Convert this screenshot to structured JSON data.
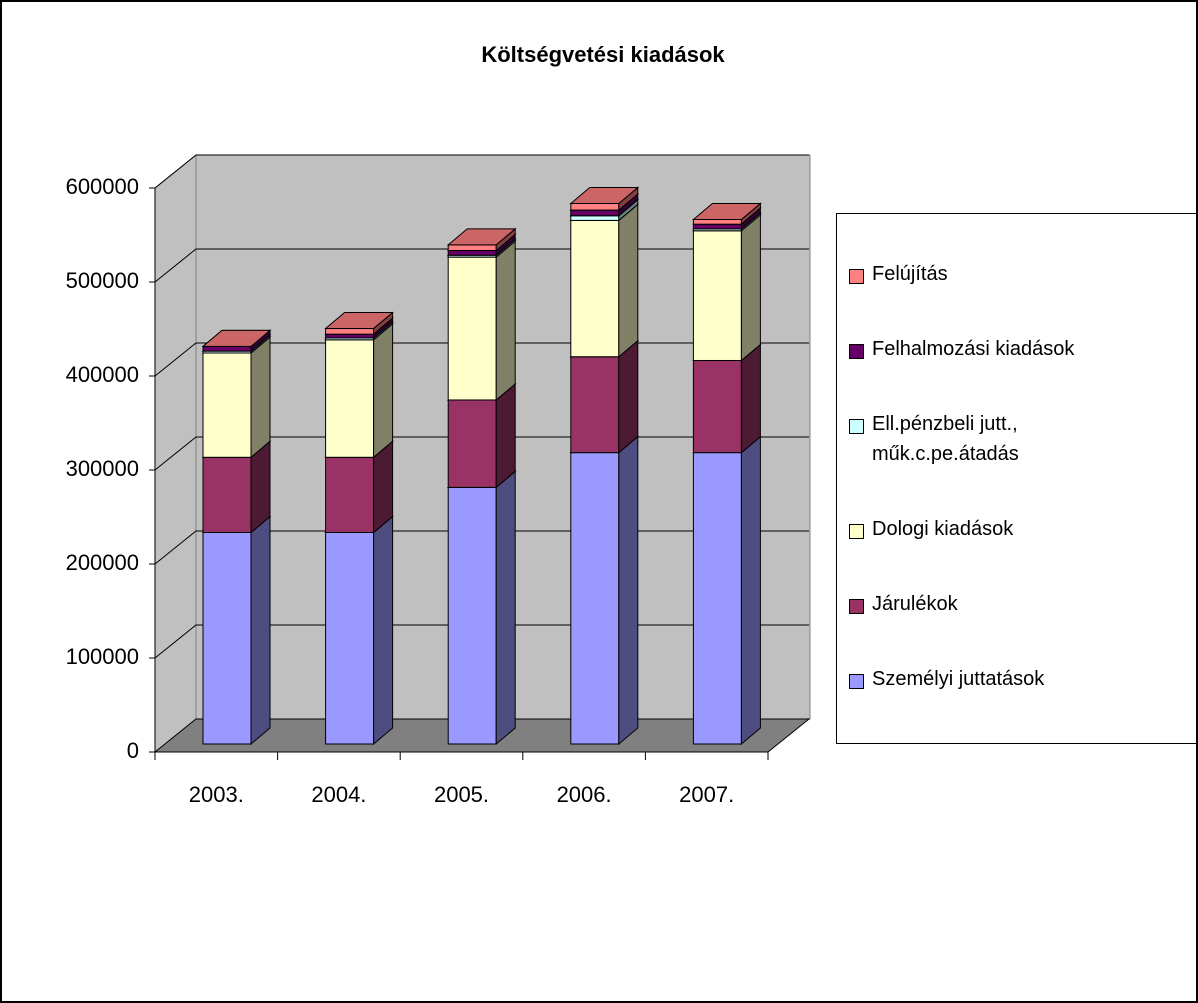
{
  "chart_data": {
    "type": "bar3d_stacked",
    "title": "Költségvetési kiadások",
    "categories": [
      "2003.",
      "2004.",
      "2005.",
      "2006.",
      "2007."
    ],
    "series": [
      {
        "name": "Személyi juttatások",
        "color": "#9999ff",
        "values": [
          225000,
          225000,
          273000,
          310000,
          310000
        ]
      },
      {
        "name": "Járulékok",
        "color": "#993366",
        "values": [
          80000,
          80000,
          93000,
          102000,
          98000
        ]
      },
      {
        "name": "Dologi kiadások",
        "color": "#ffffcc",
        "values": [
          111000,
          125000,
          152000,
          145000,
          138000
        ]
      },
      {
        "name": "Ell.pénzbeli jutt., műk.c.pe.átadás",
        "color": "#ccffff",
        "values": [
          2000,
          2000,
          2000,
          5000,
          2000
        ]
      },
      {
        "name": "Felhalmozási kiadások",
        "color": "#660066",
        "values": [
          5000,
          4000,
          5000,
          6000,
          5000
        ]
      },
      {
        "name": "Felújítás",
        "color": "#ff8080",
        "values": [
          0,
          6000,
          6000,
          7000,
          5000
        ]
      }
    ],
    "ylim": [
      0,
      600000
    ],
    "yticks": [
      0,
      100000,
      200000,
      300000,
      400000,
      500000,
      600000
    ],
    "grid": true,
    "legend": "right"
  }
}
